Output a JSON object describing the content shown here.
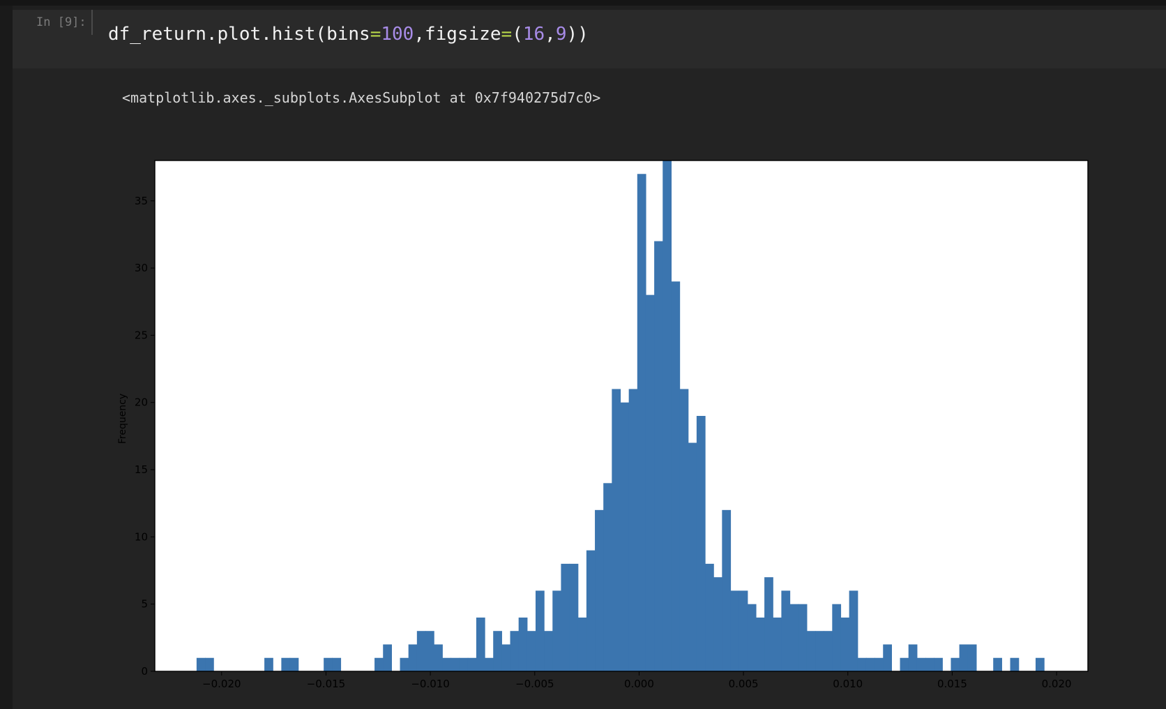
{
  "cell": {
    "prompt": "In [9]:",
    "code": {
      "t1": "df_return.plot.hist(bins",
      "eq1": "=",
      "n1": "100",
      "t2": ",figsize",
      "eq2": "=",
      "t3": "(",
      "n2": "16",
      "t4": ",",
      "n3": "9",
      "t5": "))"
    },
    "output_text": "<matplotlib.axes._subplots.AxesSubplot at 0x7f940275d7c0>"
  },
  "colors": {
    "bar": "#3b75af",
    "plot_bg": "#ffffff",
    "axis": "#000000"
  },
  "chart_data": {
    "type": "histogram",
    "ylabel": "Frequency",
    "xlim": [
      -0.0232,
      0.0215
    ],
    "ylim": [
      0,
      38
    ],
    "x_ticks": [
      -0.02,
      -0.015,
      -0.01,
      -0.005,
      0.0,
      0.005,
      0.01,
      0.015,
      0.02
    ],
    "x_tick_labels": [
      "−0.020",
      "−0.015",
      "−0.010",
      "−0.005",
      "0.000",
      "0.005",
      "0.010",
      "0.015",
      "0.020"
    ],
    "y_ticks": [
      0,
      5,
      10,
      15,
      20,
      25,
      30,
      35
    ],
    "y_tick_labels": [
      "0",
      "5",
      "10",
      "15",
      "20",
      "25",
      "30",
      "35"
    ],
    "bin_start": -0.0212,
    "bin_width": 0.000406,
    "counts": [
      1,
      1,
      0,
      0,
      0,
      0,
      0,
      0,
      1,
      0,
      1,
      1,
      0,
      0,
      0,
      1,
      1,
      0,
      0,
      0,
      0,
      1,
      2,
      0,
      1,
      2,
      3,
      3,
      2,
      1,
      1,
      1,
      1,
      4,
      1,
      3,
      2,
      3,
      4,
      3,
      6,
      3,
      6,
      8,
      8,
      4,
      9,
      12,
      14,
      21,
      20,
      21,
      37,
      28,
      32,
      38,
      29,
      21,
      17,
      19,
      8,
      7,
      12,
      6,
      6,
      5,
      4,
      7,
      4,
      6,
      5,
      5,
      3,
      3,
      3,
      5,
      4,
      6,
      1,
      1,
      1,
      2,
      0,
      1,
      2,
      1,
      1,
      1,
      0,
      1,
      2,
      2,
      0,
      0,
      1,
      0,
      1,
      0,
      0,
      1
    ]
  }
}
